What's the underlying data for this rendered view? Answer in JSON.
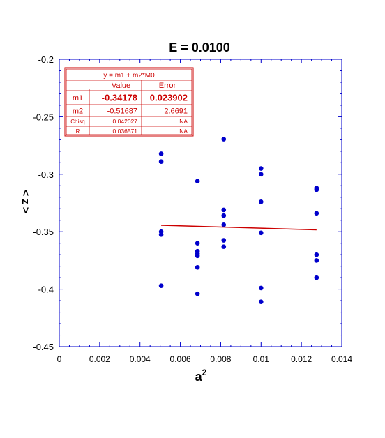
{
  "chart_data": {
    "type": "scatter",
    "title": "E = 0.0100",
    "xlabel": "a",
    "xlabel_superscript": "2",
    "ylabel": "< z >",
    "xlim": [
      0,
      0.014
    ],
    "ylim": [
      -0.45,
      -0.2
    ],
    "x_ticks": [
      0,
      0.002,
      0.004,
      0.006,
      0.008,
      0.01,
      0.012,
      0.014
    ],
    "x_tick_labels": [
      "0",
      "0.002",
      "0.004",
      "0.006",
      "0.008",
      "0.01",
      "0.012",
      "0.014"
    ],
    "y_ticks": [
      -0.45,
      -0.4,
      -0.35,
      -0.3,
      -0.25,
      -0.2
    ],
    "y_tick_labels": [
      "-0.45",
      "-0.4",
      "-0.35",
      "-0.3",
      "-0.25",
      "-0.2"
    ],
    "grid": false,
    "colors": {
      "points": "#0000cc",
      "fit": "#cc0000",
      "axes": "#0000cc",
      "table": "#cc0000"
    },
    "series": [
      {
        "points": [
          {
            "x": 0.00505,
            "y": -0.2822
          },
          {
            "x": 0.00505,
            "y": -0.289
          },
          {
            "x": 0.00505,
            "y": -0.35
          },
          {
            "x": 0.00505,
            "y": -0.3525
          },
          {
            "x": 0.00505,
            "y": -0.397
          },
          {
            "x": 0.00685,
            "y": -0.306
          },
          {
            "x": 0.00685,
            "y": -0.36
          },
          {
            "x": 0.00685,
            "y": -0.367
          },
          {
            "x": 0.00685,
            "y": -0.369
          },
          {
            "x": 0.00685,
            "y": -0.371
          },
          {
            "x": 0.00685,
            "y": -0.381
          },
          {
            "x": 0.00685,
            "y": -0.404
          },
          {
            "x": 0.00815,
            "y": -0.2695
          },
          {
            "x": 0.00815,
            "y": -0.331
          },
          {
            "x": 0.00815,
            "y": -0.336
          },
          {
            "x": 0.00815,
            "y": -0.344
          },
          {
            "x": 0.00815,
            "y": -0.3575
          },
          {
            "x": 0.00815,
            "y": -0.363
          },
          {
            "x": 0.01,
            "y": -0.295
          },
          {
            "x": 0.01,
            "y": -0.3
          },
          {
            "x": 0.01,
            "y": -0.324
          },
          {
            "x": 0.01,
            "y": -0.351
          },
          {
            "x": 0.01,
            "y": -0.399
          },
          {
            "x": 0.01,
            "y": -0.411
          },
          {
            "x": 0.01275,
            "y": -0.312
          },
          {
            "x": 0.01275,
            "y": -0.3135
          },
          {
            "x": 0.01275,
            "y": -0.334
          },
          {
            "x": 0.01275,
            "y": -0.37
          },
          {
            "x": 0.01275,
            "y": -0.375
          },
          {
            "x": 0.01275,
            "y": -0.39
          }
        ]
      }
    ],
    "fit": {
      "m1": -0.34178,
      "m2": -0.51687,
      "x_range": [
        0.00505,
        0.01275
      ]
    },
    "fit_table": {
      "equation": "y = m1 + m2*M0",
      "col_value": "Value",
      "col_error": "Error",
      "rows": [
        {
          "name": "m1",
          "value": "-0.34178",
          "error": "0.023902",
          "bold": true
        },
        {
          "name": "m2",
          "value": "-0.51687",
          "error": "2.6691",
          "bold": false
        },
        {
          "name": "Chisq",
          "value": "0.042027",
          "error": "NA",
          "bold": false
        },
        {
          "name": "R",
          "value": "0.036571",
          "error": "NA",
          "bold": false
        }
      ],
      "placement": "top-left"
    }
  }
}
